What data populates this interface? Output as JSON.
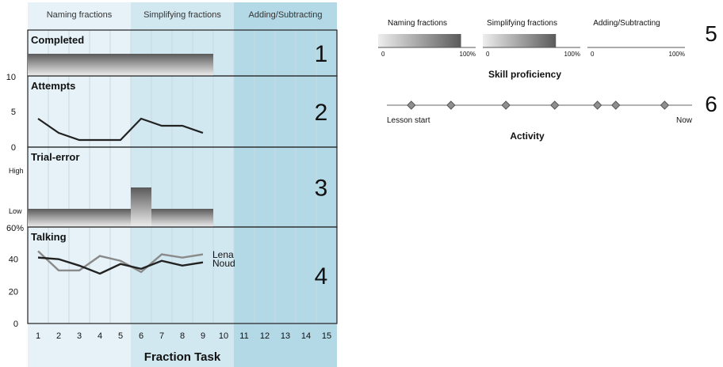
{
  "colors": {
    "phase1": "#e6f2f7",
    "phase2": "#d2e8f1",
    "phase3": "#b3d8e6",
    "panel_border": "#222222",
    "grid": "#c9d9e1",
    "line_dark": "#222222",
    "line_grey": "#8a8a8a",
    "bar_top": "#5a5a5a",
    "bar_bottom": "#eeeeee",
    "diamond": "#8f8f8f"
  },
  "phases": [
    "Naming fractions",
    "Simplifying fractions",
    "Adding/Subtracting"
  ],
  "panels": [
    {
      "title": "Completed",
      "number": "1"
    },
    {
      "title": "Attempts",
      "number": "2"
    },
    {
      "title": "Trial-error",
      "number": "3"
    },
    {
      "title": "Talking",
      "number": "4"
    }
  ],
  "chart_data": [
    {
      "type": "bar",
      "panel": "Completed",
      "categories": [
        "1",
        "2",
        "3",
        "4",
        "5",
        "6",
        "7",
        "8",
        "9",
        "10",
        "11",
        "12",
        "13",
        "14",
        "15"
      ],
      "values": [
        1,
        1,
        1,
        1,
        1,
        1,
        1,
        1,
        1,
        0,
        0,
        0,
        0,
        0,
        0
      ]
    },
    {
      "type": "line",
      "panel": "Attempts",
      "ylim": [
        0,
        10
      ],
      "yticks": [
        "0",
        "5",
        "10"
      ],
      "x": [
        1,
        2,
        3,
        4,
        5,
        6,
        7,
        8,
        9
      ],
      "series": [
        {
          "values": [
            4,
            2,
            1,
            1,
            1,
            4,
            3,
            3,
            2
          ]
        }
      ]
    },
    {
      "type": "bar",
      "panel": "Trial-error",
      "yticks": [
        "Low",
        "High"
      ],
      "categories": [
        "1",
        "2",
        "3",
        "4",
        "5",
        "6",
        "7",
        "8",
        "9",
        "10",
        "11",
        "12",
        "13",
        "14",
        "15"
      ],
      "levels": [
        "Low",
        "Low",
        "Low",
        "Low",
        "Low",
        "High",
        "Low",
        "Low",
        "Low",
        "",
        "",
        "",
        "",
        "",
        ""
      ]
    },
    {
      "type": "line",
      "panel": "Talking",
      "ylim": [
        0,
        60
      ],
      "yticks": [
        "0",
        "20",
        "40",
        "60%"
      ],
      "x": [
        1,
        2,
        3,
        4,
        5,
        6,
        7,
        8,
        9
      ],
      "xticks": [
        "1",
        "2",
        "3",
        "4",
        "5",
        "6",
        "7",
        "8",
        "9",
        "10",
        "11",
        "12",
        "13",
        "14",
        "15"
      ],
      "xlabel": "Fraction Task",
      "series": [
        {
          "name": "Lena",
          "values": [
            45,
            33,
            33,
            42,
            39,
            32,
            43,
            41,
            43
          ]
        },
        {
          "name": "Noud",
          "values": [
            41,
            40,
            36,
            31,
            37,
            34,
            39,
            36,
            38
          ]
        }
      ]
    },
    {
      "type": "bar",
      "number": "5",
      "xlabel": "Skill proficiency",
      "categories": [
        "Naming fractions",
        "Simplifying fractions",
        "Adding/Subtracting"
      ],
      "values": [
        85,
        75,
        0
      ],
      "ylim": [
        0,
        100
      ],
      "min_label": "0",
      "max_label": "100%"
    },
    {
      "type": "scatter",
      "number": "6",
      "xlabel": "Activity",
      "start_label": "Lesson start",
      "end_label": "Now",
      "x": [
        0.08,
        0.21,
        0.39,
        0.55,
        0.69,
        0.75,
        0.91
      ]
    }
  ]
}
